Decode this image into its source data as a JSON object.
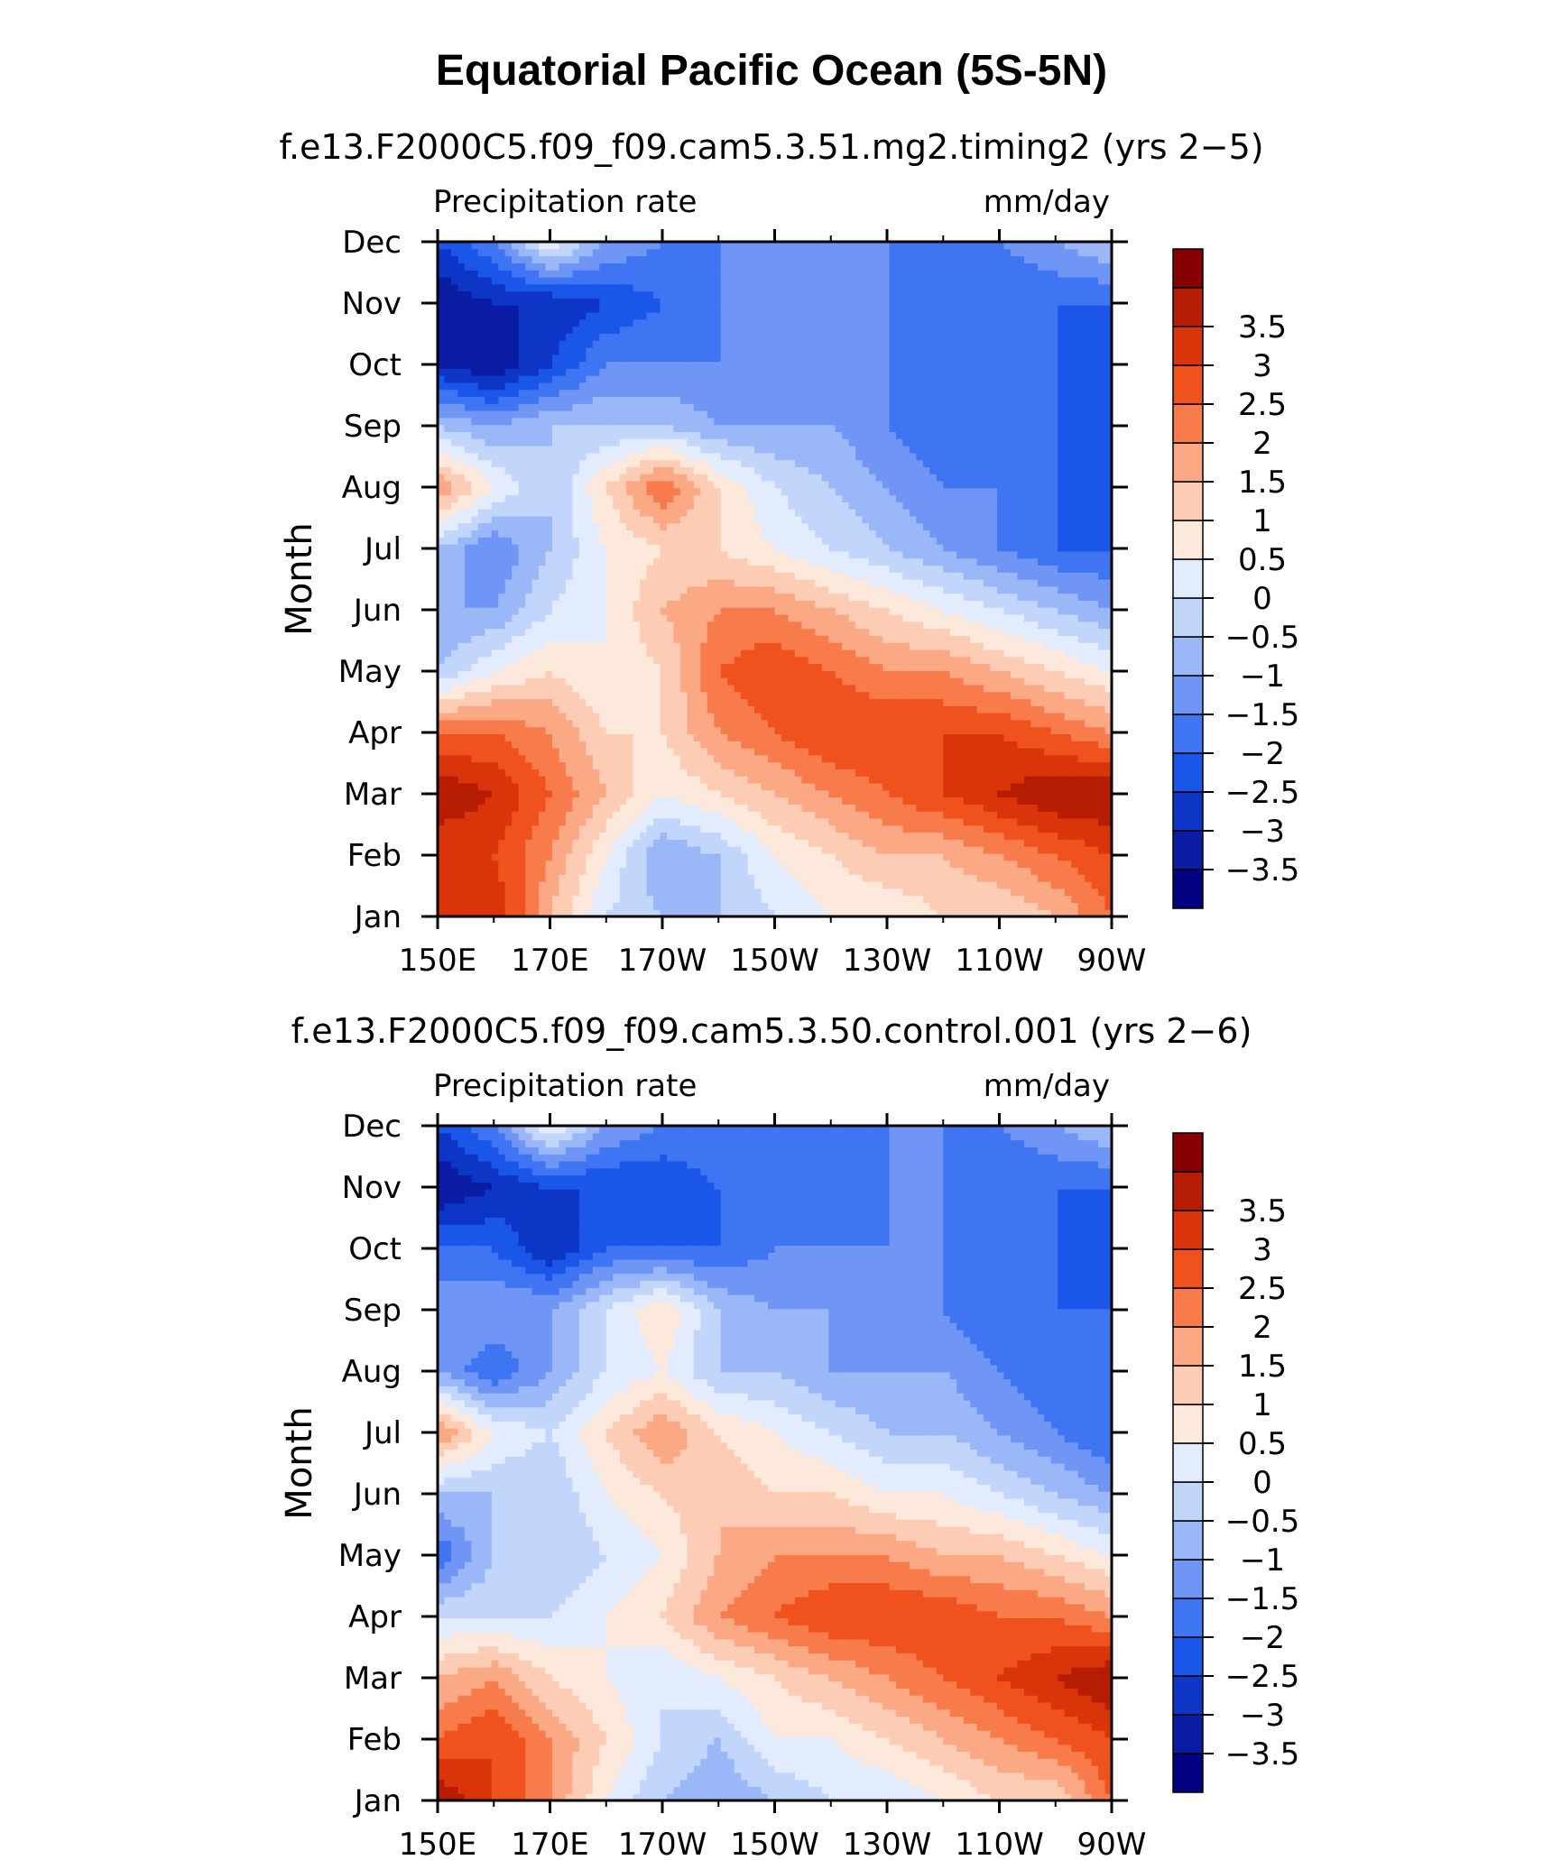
{
  "figure": {
    "title": "Equatorial Pacific Ocean (5S-5N)"
  },
  "colorbar": {
    "colors": [
      "#000080",
      "#0a1ca4",
      "#0d36c7",
      "#1a56e8",
      "#3f74f2",
      "#6f96f5",
      "#9ab7f8",
      "#c2d5fa",
      "#e2ecfc",
      "#fde9dc",
      "#fdccb5",
      "#fba884",
      "#f87b4c",
      "#f0521e",
      "#d9340a",
      "#b51c02",
      "#860101"
    ],
    "levels": [
      "-3.5",
      "-3",
      "-2.5",
      "-2",
      "-1.5",
      "-1",
      "-0.5",
      "0",
      "0.5",
      "1",
      "1.5",
      "2",
      "2.5",
      "3",
      "3.5"
    ]
  },
  "chart_data": [
    {
      "type": "heatmap",
      "subtitle": "f.e13.F2000C5.f09_f09.cam5.3.51.mg2.timing2 (yrs 2-5)",
      "left_label": "Precipitation rate",
      "right_label": "mm/day",
      "ylabel": "Month",
      "xlabel": "",
      "x_ticklabels": [
        "150E",
        "170E",
        "170W",
        "150W",
        "130W",
        "110W",
        "90W"
      ],
      "x": [
        150,
        160,
        170,
        180,
        190,
        200,
        210,
        220,
        230,
        240,
        250,
        260,
        270
      ],
      "y_ticklabels": [
        "Jan",
        "Feb",
        "Mar",
        "Apr",
        "May",
        "Jun",
        "Jul",
        "Aug",
        "Sep",
        "Oct",
        "Nov",
        "Dec"
      ],
      "values": [
        [
          3.0,
          3.5,
          1.5,
          0.0,
          -0.5,
          -0.5,
          0.0,
          0.5,
          0.5,
          1.0,
          1.0,
          1.5,
          2.5
        ],
        [
          3.0,
          3.0,
          2.0,
          0.5,
          -1.0,
          -0.5,
          0.5,
          1.0,
          1.5,
          1.5,
          2.0,
          2.5,
          3.0
        ],
        [
          4.0,
          3.5,
          2.5,
          1.5,
          0.5,
          1.0,
          1.5,
          2.0,
          2.5,
          3.0,
          3.5,
          4.0,
          4.0
        ],
        [
          2.5,
          2.5,
          2.0,
          1.0,
          1.0,
          2.0,
          2.5,
          3.0,
          3.0,
          3.0,
          3.0,
          2.5,
          2.0
        ],
        [
          -0.5,
          0.5,
          1.0,
          0.5,
          1.0,
          2.5,
          3.0,
          2.5,
          2.0,
          2.0,
          1.5,
          1.0,
          0.5
        ],
        [
          -1.0,
          -1.0,
          0.0,
          0.5,
          1.5,
          2.0,
          2.0,
          1.5,
          1.0,
          0.5,
          0.0,
          -0.5,
          -1.0
        ],
        [
          -0.5,
          -1.5,
          -0.5,
          0.5,
          1.0,
          1.0,
          0.5,
          0.0,
          -0.5,
          -1.0,
          -1.5,
          -2.0,
          -2.0
        ],
        [
          2.0,
          0.5,
          -0.5,
          1.0,
          2.5,
          1.0,
          0.0,
          -0.5,
          -1.0,
          -1.5,
          -1.5,
          -2.0,
          -2.5
        ],
        [
          -0.5,
          -1.0,
          -0.5,
          -0.5,
          -0.5,
          -1.0,
          -1.0,
          -1.0,
          -1.5,
          -2.0,
          -2.0,
          -2.0,
          -2.0
        ],
        [
          -3.0,
          -3.5,
          -2.5,
          -1.5,
          -1.5,
          -1.5,
          -1.0,
          -1.5,
          -1.5,
          -2.0,
          -2.0,
          -2.0,
          -2.5
        ],
        [
          -3.5,
          -3.0,
          -3.0,
          -2.5,
          -2.0,
          -1.5,
          -1.5,
          -1.5,
          -1.5,
          -2.0,
          -2.0,
          -2.0,
          -2.0
        ],
        [
          -2.5,
          -1.5,
          0.5,
          -1.0,
          -1.5,
          -1.5,
          -1.5,
          -1.5,
          -1.5,
          -1.5,
          -1.5,
          -1.0,
          -0.5
        ]
      ]
    },
    {
      "type": "heatmap",
      "subtitle": "f.e13.F2000C5.f09_f09.cam5.3.50.control.001 (yrs 2-6)",
      "left_label": "Precipitation rate",
      "right_label": "mm/day",
      "ylabel": "Month",
      "xlabel": "",
      "x_ticklabels": [
        "150E",
        "170E",
        "170W",
        "150W",
        "130W",
        "110W",
        "90W"
      ],
      "x": [
        150,
        160,
        170,
        180,
        190,
        200,
        210,
        220,
        230,
        240,
        250,
        260,
        270
      ],
      "y_ticklabels": [
        "Jan",
        "Feb",
        "Mar",
        "Apr",
        "May",
        "Jun",
        "Jul",
        "Aug",
        "Sep",
        "Oct",
        "Nov",
        "Dec"
      ],
      "values": [
        [
          4.0,
          3.0,
          2.0,
          0.5,
          -0.5,
          -1.0,
          -0.5,
          0.0,
          0.0,
          0.5,
          1.0,
          1.0,
          2.5
        ],
        [
          2.5,
          3.0,
          2.0,
          1.0,
          0.0,
          -0.5,
          0.5,
          0.5,
          1.0,
          1.5,
          2.0,
          2.5,
          3.0
        ],
        [
          1.5,
          2.0,
          1.0,
          0.5,
          0.0,
          0.5,
          1.0,
          1.5,
          2.0,
          2.5,
          3.0,
          3.5,
          4.0
        ],
        [
          0.0,
          0.0,
          0.0,
          0.5,
          1.0,
          2.0,
          2.5,
          3.0,
          3.0,
          3.0,
          2.5,
          2.5,
          2.0
        ],
        [
          -2.0,
          -0.5,
          -0.5,
          0.0,
          0.5,
          1.5,
          2.0,
          2.0,
          2.0,
          1.5,
          1.5,
          1.0,
          0.5
        ],
        [
          -0.5,
          -0.5,
          -0.5,
          0.5,
          1.0,
          1.5,
          1.0,
          1.0,
          0.5,
          0.5,
          0.0,
          -0.5,
          -1.0
        ],
        [
          2.0,
          0.5,
          0.0,
          1.0,
          2.0,
          1.0,
          0.5,
          0.0,
          -0.5,
          -0.5,
          -1.0,
          -1.5,
          -2.0
        ],
        [
          -1.0,
          -2.0,
          -1.0,
          0.0,
          0.5,
          -0.5,
          -0.5,
          -1.0,
          -1.0,
          -1.0,
          -1.5,
          -2.0,
          -2.0
        ],
        [
          -1.0,
          -1.0,
          -1.0,
          0.0,
          1.0,
          -0.5,
          -1.0,
          -1.0,
          -1.5,
          -1.5,
          -2.0,
          -2.0,
          -2.0
        ],
        [
          -2.0,
          -2.0,
          -3.0,
          -2.0,
          -2.0,
          -2.0,
          -1.5,
          -1.5,
          -1.5,
          -1.5,
          -2.0,
          -2.0,
          -2.5
        ],
        [
          -3.5,
          -3.0,
          -2.5,
          -2.5,
          -2.5,
          -2.0,
          -2.0,
          -2.0,
          -1.5,
          -1.5,
          -2.0,
          -2.0,
          -2.0
        ],
        [
          -2.5,
          -1.5,
          0.5,
          -1.0,
          -1.5,
          -1.5,
          -1.5,
          -1.5,
          -1.5,
          -1.5,
          -1.5,
          -1.0,
          -0.5
        ]
      ]
    }
  ]
}
